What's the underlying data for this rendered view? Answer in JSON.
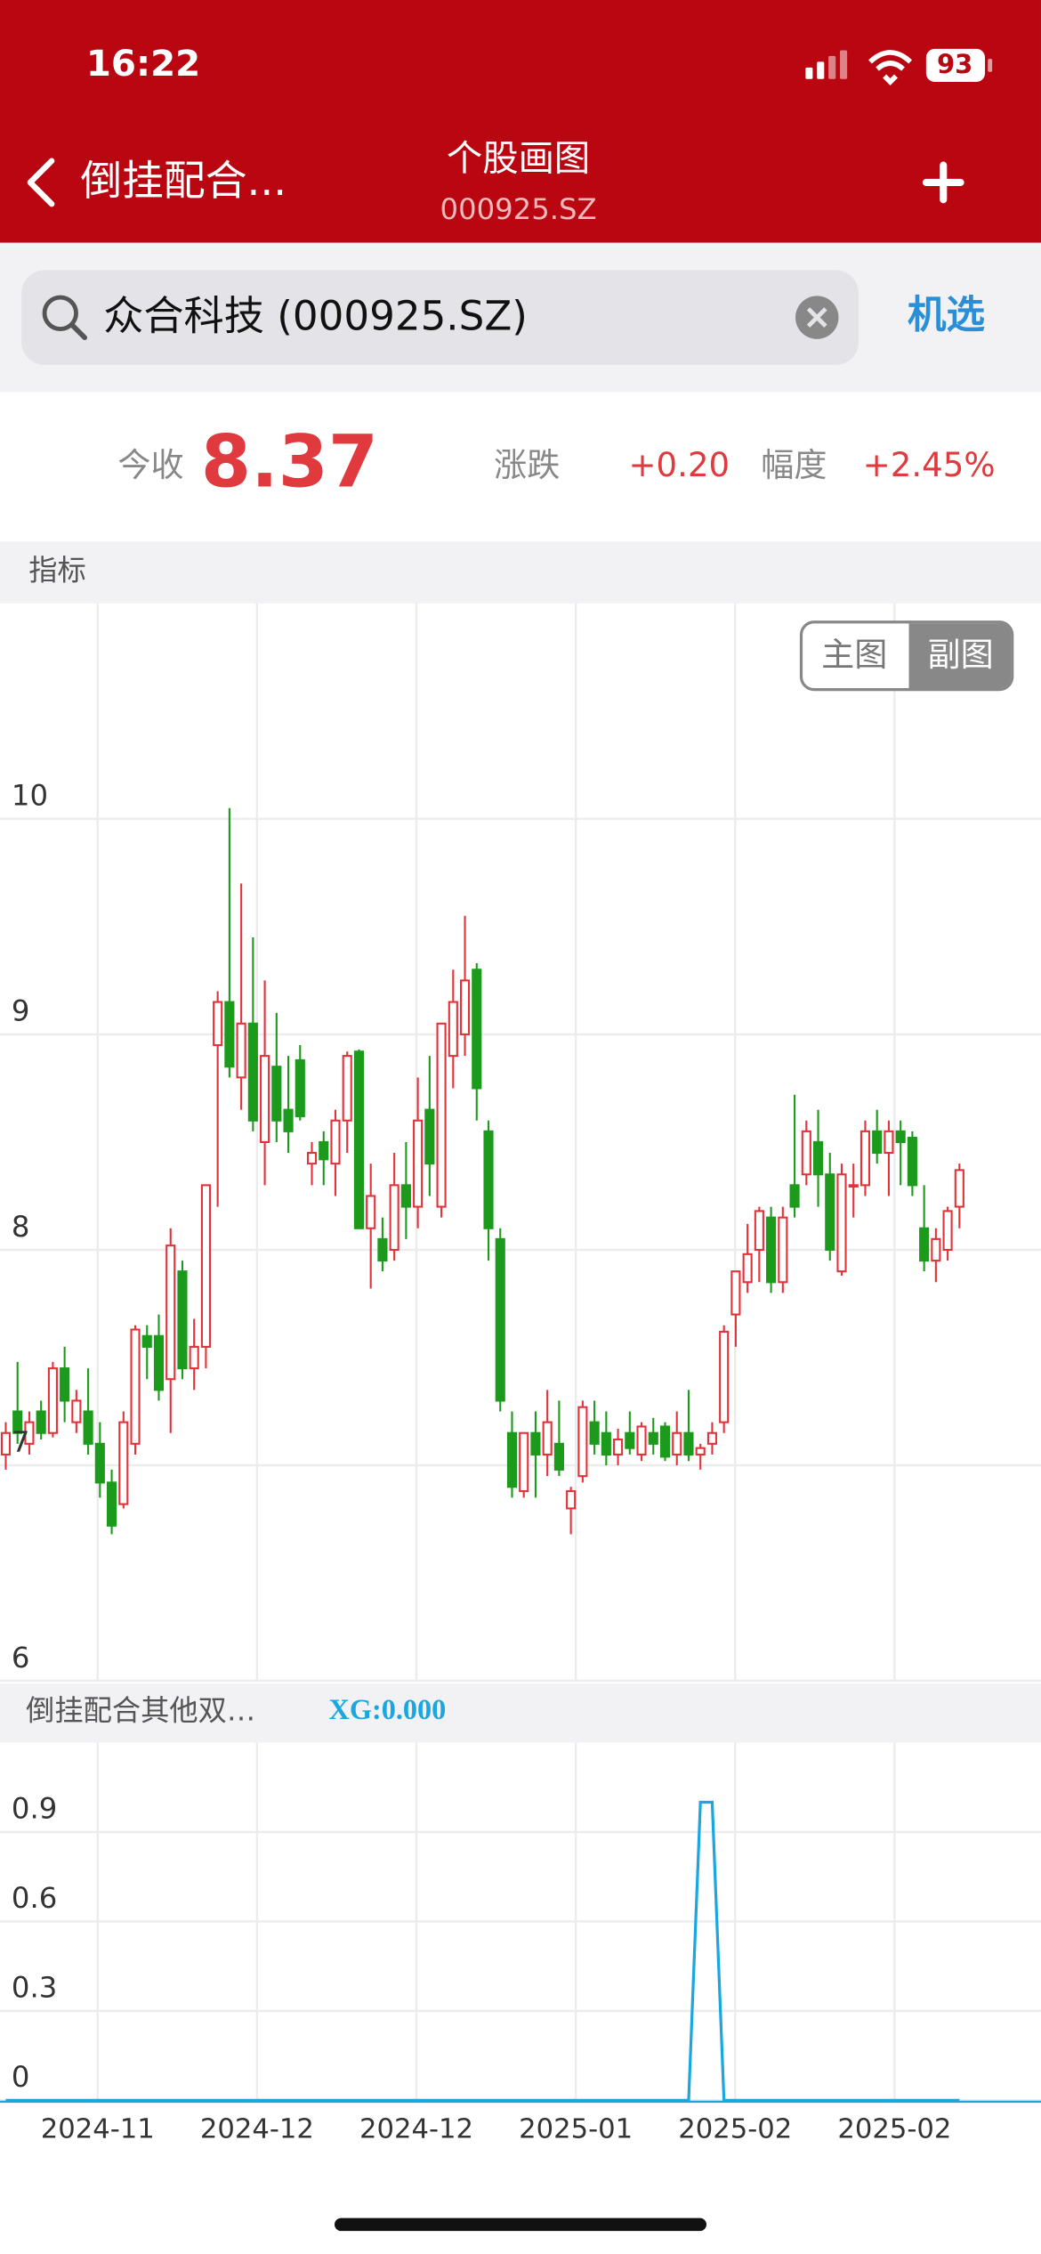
{
  "status": {
    "time": "16:22",
    "battery": "93"
  },
  "header": {
    "back_title": "倒挂配合...",
    "title": "个股画图",
    "subtitle": "000925.SZ"
  },
  "search": {
    "query": "众合科技 (000925.SZ)",
    "action": "机选"
  },
  "quote": {
    "close_label": "今收",
    "close": "8.37",
    "change_label": "涨跌",
    "change": "+0.20",
    "pct_label": "幅度",
    "pct": "+2.45%"
  },
  "section_label": "指标",
  "toggle": [
    "主图",
    "副图"
  ],
  "chart_data": [
    {
      "type": "candlestick",
      "up_color": "#e4323a",
      "down_color": "#1c9a1c",
      "ylim": [
        6,
        11
      ],
      "yticks": [
        6,
        7,
        8,
        9,
        10
      ],
      "grid": true,
      "x_labels": [
        "2024-11",
        "2024-12",
        "2024-12",
        "2025-01",
        "2025-02",
        "2025-02"
      ],
      "open": [
        7.05,
        7.25,
        7.1,
        7.25,
        7.15,
        7.45,
        7.2,
        7.25,
        7.1,
        6.92,
        6.82,
        7.1,
        7.6,
        7.6,
        7.4,
        7.9,
        7.45,
        7.55,
        8.95,
        9.15,
        8.8,
        9.05,
        8.5,
        8.85,
        8.65,
        8.88,
        8.4,
        8.5,
        8.4,
        8.6,
        8.92,
        8.1,
        8.05,
        8.0,
        8.3,
        8.2,
        8.65,
        8.2,
        8.9,
        9.0,
        9.3,
        8.55,
        8.05,
        7.15,
        6.88,
        7.15,
        7.05,
        7.1,
        6.8,
        6.95,
        7.2,
        7.15,
        7.05,
        7.15,
        7.05,
        7.15,
        7.18,
        7.05,
        7.15,
        7.05,
        7.1,
        7.2,
        7.7,
        7.85,
        8.0,
        8.15,
        7.85,
        8.3,
        8.35,
        8.5,
        8.35,
        7.9,
        8.3,
        8.3,
        8.55,
        8.45,
        8.55,
        8.52,
        8.1,
        7.95,
        8.0,
        8.2
      ],
      "high": [
        7.2,
        7.48,
        7.25,
        7.3,
        7.48,
        7.55,
        7.35,
        7.45,
        7.2,
        6.98,
        7.25,
        7.65,
        7.65,
        7.7,
        8.1,
        7.95,
        7.68,
        8.3,
        9.2,
        10.05,
        9.7,
        9.45,
        9.25,
        9.1,
        8.9,
        8.95,
        8.5,
        8.55,
        8.65,
        8.92,
        8.93,
        8.4,
        8.15,
        8.45,
        8.5,
        8.8,
        8.9,
        9.05,
        9.3,
        9.55,
        9.33,
        8.6,
        8.1,
        7.25,
        7.15,
        7.25,
        7.35,
        7.3,
        6.9,
        7.3,
        7.3,
        7.25,
        7.17,
        7.25,
        7.2,
        7.22,
        7.2,
        7.25,
        7.35,
        7.1,
        7.2,
        7.65,
        7.9,
        8.12,
        8.2,
        8.2,
        8.2,
        8.72,
        8.6,
        8.65,
        8.45,
        8.4,
        8.4,
        8.6,
        8.65,
        8.6,
        8.6,
        8.55,
        8.3,
        8.1,
        8.2,
        8.4
      ],
      "low": [
        6.98,
        7.1,
        7.05,
        7.12,
        7.13,
        7.2,
        7.15,
        7.05,
        6.85,
        6.68,
        6.8,
        7.05,
        7.4,
        7.3,
        7.15,
        7.4,
        7.35,
        7.45,
        8.2,
        8.8,
        8.65,
        8.55,
        8.3,
        8.5,
        8.45,
        8.6,
        8.3,
        8.3,
        8.25,
        8.45,
        8.1,
        7.82,
        7.9,
        7.95,
        8.05,
        8.1,
        8.25,
        8.15,
        8.75,
        8.9,
        8.6,
        7.95,
        7.25,
        6.85,
        6.85,
        6.85,
        6.95,
        6.95,
        6.68,
        6.92,
        7.05,
        7.0,
        7.0,
        7.05,
        7.02,
        7.05,
        7.02,
        7.0,
        7.02,
        6.98,
        7.05,
        7.15,
        7.55,
        7.8,
        7.85,
        7.8,
        7.8,
        8.15,
        8.3,
        8.2,
        7.95,
        7.88,
        8.15,
        8.25,
        8.4,
        8.25,
        8.3,
        8.25,
        7.9,
        7.85,
        7.95,
        8.1
      ],
      "close": [
        7.15,
        7.15,
        7.2,
        7.15,
        7.45,
        7.3,
        7.3,
        7.1,
        6.92,
        6.72,
        7.2,
        7.63,
        7.55,
        7.35,
        8.02,
        7.45,
        7.55,
        8.3,
        9.15,
        8.85,
        9.05,
        8.6,
        8.9,
        8.6,
        8.55,
        8.62,
        8.45,
        8.42,
        8.6,
        8.9,
        8.1,
        8.25,
        7.95,
        8.3,
        8.2,
        8.6,
        8.4,
        9.05,
        9.15,
        9.25,
        8.75,
        8.1,
        7.3,
        6.9,
        7.15,
        7.05,
        7.2,
        6.98,
        6.88,
        7.27,
        7.1,
        7.05,
        7.12,
        7.08,
        7.18,
        7.1,
        7.04,
        7.15,
        7.05,
        7.08,
        7.15,
        7.62,
        7.9,
        7.98,
        8.18,
        7.85,
        8.15,
        8.2,
        8.55,
        8.35,
        8.0,
        8.35,
        8.3,
        8.55,
        8.45,
        8.55,
        8.5,
        8.3,
        7.95,
        8.05,
        8.18,
        8.37
      ]
    },
    {
      "type": "line",
      "title": "倒挂配合其他双…",
      "annotation": "XG:0.000",
      "color": "#1aa7e0",
      "ylim": [
        0,
        1.2
      ],
      "yticks": [
        0,
        0.3,
        0.6,
        0.9
      ],
      "grid": true,
      "values": [
        0,
        0,
        0,
        0,
        0,
        0,
        0,
        0,
        0,
        0,
        0,
        0,
        0,
        0,
        0,
        0,
        0,
        0,
        0,
        0,
        0,
        0,
        0,
        0,
        0,
        0,
        0,
        0,
        0,
        0,
        0,
        0,
        0,
        0,
        0,
        0,
        0,
        0,
        0,
        0,
        0,
        0,
        0,
        0,
        0,
        0,
        0,
        0,
        0,
        0,
        0,
        0,
        0,
        0,
        0,
        0,
        0,
        0,
        0,
        1,
        1,
        0,
        0,
        0,
        0,
        0,
        0,
        0,
        0,
        0,
        0,
        0,
        0,
        0,
        0,
        0,
        0,
        0,
        0,
        0,
        0,
        0
      ]
    }
  ]
}
